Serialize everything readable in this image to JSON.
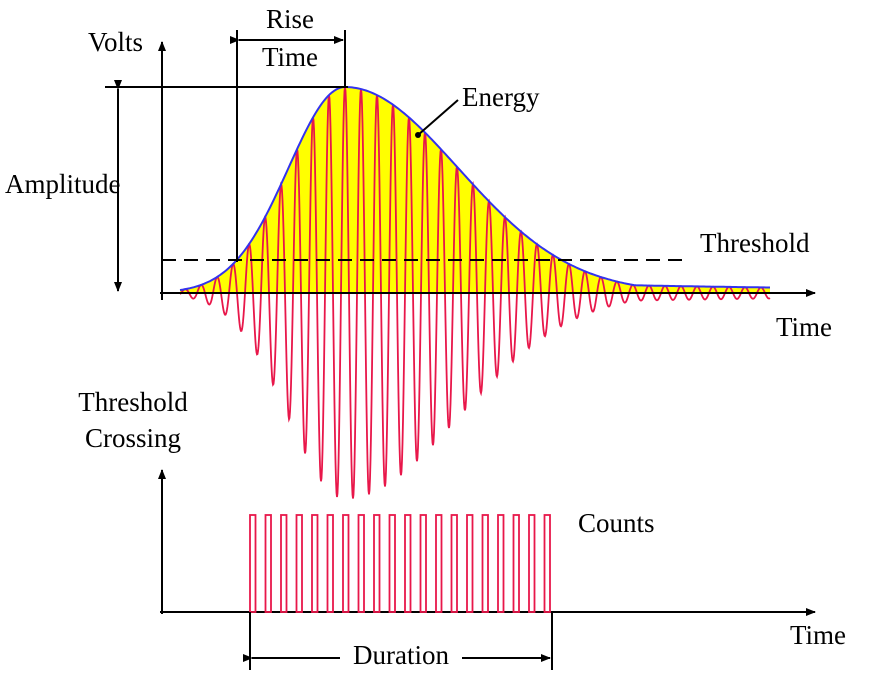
{
  "labels": {
    "volts": "Volts",
    "rise_time": [
      "Rise",
      "Time"
    ],
    "energy": "Energy",
    "amplitude": "Amplitude",
    "threshold": "Threshold",
    "time_top": "Time",
    "threshold_crossing": [
      "Threshold",
      "Crossing"
    ],
    "counts": "Counts",
    "time_bottom": "Time",
    "duration": "Duration"
  }
}
